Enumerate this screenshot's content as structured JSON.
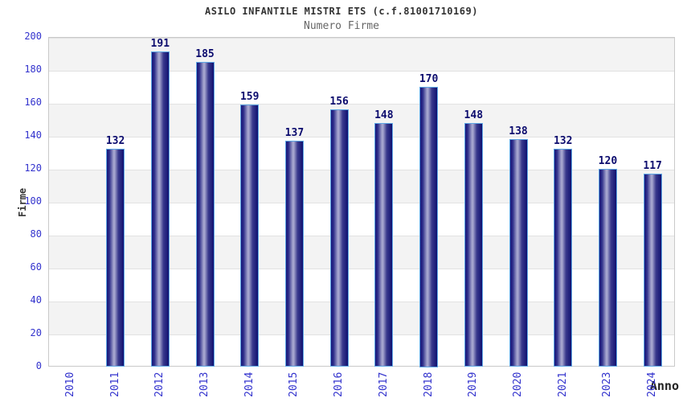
{
  "chart_data": {
    "type": "bar",
    "title": "ASILO INFANTILE MISTRI ETS (c.f.81001710169)",
    "subtitle": "Numero Firme",
    "xlabel": "Anno",
    "ylabel": "Firme",
    "categories": [
      "2010",
      "2011",
      "2012",
      "2013",
      "2014",
      "2015",
      "2016",
      "2017",
      "2018",
      "2019",
      "2020",
      "2021",
      "2023",
      "2024"
    ],
    "values": [
      null,
      132,
      191,
      185,
      159,
      137,
      156,
      148,
      170,
      148,
      138,
      132,
      120,
      117
    ],
    "ylim": [
      0,
      200
    ],
    "yticks": [
      0,
      20,
      40,
      60,
      80,
      100,
      120,
      140,
      160,
      180,
      200
    ],
    "grid": true,
    "legend": "none",
    "band_colors": [
      "#f3f3f3",
      "#ffffff"
    ]
  },
  "colors": {
    "tick_label": "#3232cd",
    "value_label": "#0c0c6e",
    "bar_edge": "#5ea7e4",
    "bar_dark": "#17177b",
    "bar_highlight": "#a5a5ce",
    "plot_border": "#c9c9c9",
    "title": "#333333",
    "subtitle": "#666666"
  }
}
